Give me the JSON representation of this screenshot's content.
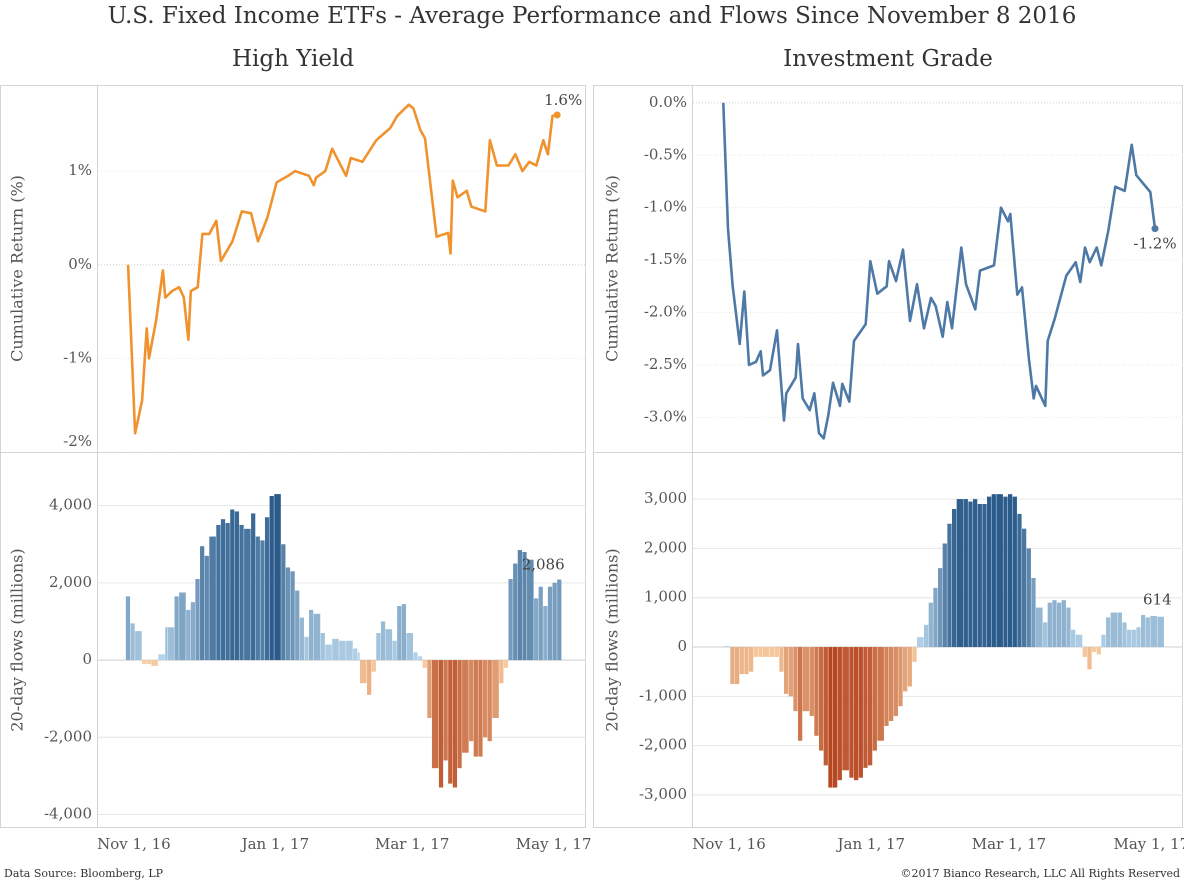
{
  "title": "U.S. Fixed Income ETFs - Average Performance and Flows Since November 8 2016",
  "footer": {
    "source": "Data Source: Bloomberg, LP",
    "copyright": "©2017 Bianco Research, LLC All Rights Reserved"
  },
  "chart_data": [
    {
      "type": "line",
      "title": "High Yield",
      "y_label": "Cumulative Return (%)",
      "color": "#f0922e",
      "grid": true,
      "xlim": [
        "2016-10-26",
        "2017-05-24"
      ],
      "ylim": [
        -2.0,
        1.92
      ],
      "yticks": [
        {
          "value": 1,
          "label": "1%"
        },
        {
          "value": 0,
          "label": "0%"
        },
        {
          "value": -1,
          "label": "-1%"
        },
        {
          "value": -2,
          "label": "-2%"
        }
      ],
      "x": [
        "2016-11-08",
        "2016-11-11",
        "2016-11-14",
        "2016-11-16",
        "2016-11-17",
        "2016-11-20",
        "2016-11-23",
        "2016-11-24",
        "2016-11-27",
        "2016-11-30",
        "2016-12-02",
        "2016-12-04",
        "2016-12-05",
        "2016-12-08",
        "2016-12-10",
        "2016-12-13",
        "2016-12-16",
        "2016-12-18",
        "2016-12-23",
        "2016-12-27",
        "2016-12-31",
        "2017-01-03",
        "2017-01-07",
        "2017-01-11",
        "2017-01-16",
        "2017-01-19",
        "2017-01-25",
        "2017-01-27",
        "2017-01-28",
        "2017-02-01",
        "2017-02-04",
        "2017-02-10",
        "2017-02-12",
        "2017-02-17",
        "2017-02-23",
        "2017-03-01",
        "2017-03-04",
        "2017-03-09",
        "2017-03-11",
        "2017-03-14",
        "2017-03-16",
        "2017-03-21",
        "2017-03-26",
        "2017-03-27",
        "2017-03-28",
        "2017-03-30",
        "2017-04-03",
        "2017-04-05",
        "2017-04-11",
        "2017-04-13",
        "2017-04-16",
        "2017-04-21",
        "2017-04-24",
        "2017-04-27",
        "2017-04-30",
        "2017-05-03",
        "2017-05-06",
        "2017-05-08",
        "2017-05-10",
        "2017-05-12"
      ],
      "values": [
        0,
        -1.8,
        -1.45,
        -0.68,
        -1.0,
        -0.6,
        -0.06,
        -0.35,
        -0.28,
        -0.24,
        -0.35,
        -0.8,
        -0.28,
        -0.24,
        0.33,
        0.33,
        0.47,
        0.04,
        0.25,
        0.57,
        0.55,
        0.25,
        0.5,
        0.88,
        0.95,
        1.0,
        0.95,
        0.85,
        0.93,
        1.0,
        1.24,
        0.95,
        1.14,
        1.1,
        1.33,
        1.46,
        1.59,
        1.71,
        1.67,
        1.44,
        1.35,
        0.3,
        0.34,
        0.12,
        0.9,
        0.72,
        0.79,
        0.62,
        0.57,
        1.33,
        1.06,
        1.06,
        1.18,
        1.0,
        1.1,
        1.06,
        1.33,
        1.18,
        1.59,
        1.6
      ],
      "last_value_label": "1.6%"
    },
    {
      "type": "bar",
      "y_label": "20-day flows (millions)",
      "grid": true,
      "colors": {
        "positive": [
          "#b9d7ec",
          "#2b5b8b"
        ],
        "negative": [
          "#fad0a3",
          "#b03c16"
        ]
      },
      "xlim": [
        "2016-10-26",
        "2017-05-24"
      ],
      "ylim": [
        -4350,
        5390
      ],
      "xticks": [
        {
          "value": "2016-11-01",
          "label": "Nov 1, 16"
        },
        {
          "value": "2017-01-01",
          "label": "Jan 1, 17"
        },
        {
          "value": "2017-03-01",
          "label": "Mar 1, 17"
        },
        {
          "value": "2017-05-01",
          "label": "May 1, 17"
        }
      ],
      "yticks": [
        {
          "value": 4000,
          "label": "4,000"
        },
        {
          "value": 2000,
          "label": "2,000"
        },
        0,
        {
          "value": -2000,
          "label": "-2,000"
        },
        {
          "value": -4000,
          "label": "-4,000"
        }
      ],
      "x": [
        "2016-11-07",
        "2016-11-09",
        "2016-11-11",
        "2016-11-14",
        "2016-11-16",
        "2016-11-18",
        "2016-11-21",
        "2016-11-24",
        "2016-11-25",
        "2016-11-28",
        "2016-11-30",
        "2016-12-03",
        "2016-12-05",
        "2016-12-07",
        "2016-12-09",
        "2016-12-11",
        "2016-12-13",
        "2016-12-16",
        "2016-12-18",
        "2016-12-20",
        "2016-12-22",
        "2016-12-24",
        "2016-12-26",
        "2016-12-28",
        "2016-12-31",
        "2017-01-02",
        "2017-01-04",
        "2017-01-06",
        "2017-01-08",
        "2017-01-10",
        "2017-01-13",
        "2017-01-15",
        "2017-01-17",
        "2017-01-19",
        "2017-01-21",
        "2017-01-23",
        "2017-01-25",
        "2017-01-27",
        "2017-01-30",
        "2017-02-01",
        "2017-02-04",
        "2017-02-07",
        "2017-02-10",
        "2017-02-13",
        "2017-02-15",
        "2017-02-16",
        "2017-02-19",
        "2017-02-21",
        "2017-02-23",
        "2017-02-25",
        "2017-02-27",
        "2017-03-02",
        "2017-03-04",
        "2017-03-06",
        "2017-03-08",
        "2017-03-11",
        "2017-03-13",
        "2017-03-15",
        "2017-03-17",
        "2017-03-19",
        "2017-03-22",
        "2017-03-24",
        "2017-03-26",
        "2017-03-28",
        "2017-03-30",
        "2017-04-01",
        "2017-04-04",
        "2017-04-06",
        "2017-04-08",
        "2017-04-10",
        "2017-04-12",
        "2017-04-14",
        "2017-04-17",
        "2017-04-19",
        "2017-04-21",
        "2017-04-23",
        "2017-04-25",
        "2017-04-27",
        "2017-04-29",
        "2017-05-02",
        "2017-05-04",
        "2017-05-06",
        "2017-05-08",
        "2017-05-10",
        "2017-05-12"
      ],
      "values": [
        1650,
        950,
        750,
        -100,
        -100,
        -150,
        150,
        850,
        850,
        1650,
        1750,
        1300,
        1500,
        2100,
        2950,
        2700,
        3200,
        3500,
        3650,
        3550,
        3900,
        3850,
        3500,
        3400,
        3800,
        3200,
        3100,
        3700,
        4250,
        4300,
        3000,
        2400,
        2300,
        1800,
        1100,
        600,
        1300,
        1200,
        700,
        400,
        550,
        500,
        500,
        300,
        200,
        -600,
        -900,
        -300,
        700,
        1000,
        800,
        500,
        1400,
        1450,
        700,
        200,
        100,
        -200,
        -1500,
        -2800,
        -3300,
        -2600,
        -3200,
        -3300,
        -2800,
        -2400,
        -2100,
        -2500,
        -2500,
        -2000,
        -2100,
        -1500,
        -600,
        -200,
        2100,
        2500,
        2850,
        2800,
        2600,
        1600,
        1900,
        1400,
        1900,
        2000,
        2086
      ],
      "last_value_label": "2,086"
    },
    {
      "type": "line",
      "title": "Investment Grade",
      "y_label": "Cumulative Return (%)",
      "color": "#4e79a7",
      "grid": true,
      "xlim": [
        "2016-10-26",
        "2017-05-24"
      ],
      "ylim": [
        -3.33,
        0.17
      ],
      "yticks": [
        {
          "value": 0,
          "label": "0.0%"
        },
        {
          "value": -0.5,
          "label": "-0.5%"
        },
        {
          "value": -1,
          "label": "-1.0%"
        },
        {
          "value": -1.5,
          "label": "-1.5%"
        },
        {
          "value": -2,
          "label": "-2.0%"
        },
        {
          "value": -2.5,
          "label": "-2.5%"
        },
        {
          "value": -3,
          "label": "-3.0%"
        }
      ],
      "x": [
        "2016-11-08",
        "2016-11-10",
        "2016-11-12",
        "2016-11-15",
        "2016-11-17",
        "2016-11-19",
        "2016-11-22",
        "2016-11-24",
        "2016-11-25",
        "2016-11-28",
        "2016-12-01",
        "2016-12-04",
        "2016-12-05",
        "2016-12-09",
        "2016-12-10",
        "2016-12-12",
        "2016-12-15",
        "2016-12-17",
        "2016-12-19",
        "2016-12-21",
        "2016-12-23",
        "2016-12-25",
        "2016-12-28",
        "2016-12-29",
        "2017-01-01",
        "2017-01-03",
        "2017-01-08",
        "2017-01-10",
        "2017-01-13",
        "2017-01-17",
        "2017-01-18",
        "2017-01-21",
        "2017-01-24",
        "2017-01-27",
        "2017-01-30",
        "2017-02-02",
        "2017-02-05",
        "2017-02-07",
        "2017-02-10",
        "2017-02-12",
        "2017-02-14",
        "2017-02-18",
        "2017-02-20",
        "2017-02-24",
        "2017-02-26",
        "2017-03-04",
        "2017-03-07",
        "2017-03-10",
        "2017-03-11",
        "2017-03-14",
        "2017-03-16",
        "2017-03-19",
        "2017-03-21",
        "2017-03-22",
        "2017-03-26",
        "2017-03-27",
        "2017-03-30",
        "2017-04-03",
        "2017-04-04",
        "2017-04-08",
        "2017-04-10",
        "2017-04-12",
        "2017-04-14",
        "2017-04-17",
        "2017-04-19",
        "2017-04-22",
        "2017-04-25",
        "2017-04-29",
        "2017-05-02",
        "2017-05-04",
        "2017-05-10",
        "2017-05-12"
      ],
      "values": [
        0,
        -1.2,
        -1.75,
        -2.3,
        -1.8,
        -2.5,
        -2.47,
        -2.37,
        -2.6,
        -2.55,
        -2.17,
        -3.03,
        -2.77,
        -2.62,
        -2.3,
        -2.82,
        -2.93,
        -2.77,
        -3.15,
        -3.2,
        -2.98,
        -2.67,
        -2.89,
        -2.68,
        -2.85,
        -2.27,
        -2.11,
        -1.51,
        -1.82,
        -1.75,
        -1.51,
        -1.7,
        -1.4,
        -2.08,
        -1.73,
        -2.15,
        -1.86,
        -1.94,
        -2.23,
        -1.9,
        -2.15,
        -1.38,
        -1.73,
        -1.97,
        -1.6,
        -1.55,
        -1.0,
        -1.13,
        -1.06,
        -1.83,
        -1.76,
        -2.45,
        -2.82,
        -2.7,
        -2.89,
        -2.27,
        -2.06,
        -1.73,
        -1.65,
        -1.52,
        -1.71,
        -1.38,
        -1.52,
        -1.38,
        -1.55,
        -1.22,
        -0.8,
        -0.84,
        -0.4,
        -0.69,
        -0.85,
        -1.2
      ],
      "last_value_label": "-1.2%"
    },
    {
      "type": "bar",
      "y_label": "20-day flows (millions)",
      "grid": true,
      "colors": {
        "positive": [
          "#b9d7ec",
          "#2b5b8b"
        ],
        "negative": [
          "#fad0a3",
          "#b03c16"
        ]
      },
      "xlim": [
        "2016-10-26",
        "2017-05-24"
      ],
      "ylim": [
        -3670,
        3955
      ],
      "xticks": [
        {
          "value": "2016-11-01",
          "label": "Nov 1, 16"
        },
        {
          "value": "2017-01-01",
          "label": "Jan 1, 17"
        },
        {
          "value": "2017-03-01",
          "label": "Mar 1, 17"
        },
        {
          "value": "2017-05-01",
          "label": "May 1, 17"
        }
      ],
      "yticks": [
        {
          "value": 3000,
          "label": "3,000"
        },
        {
          "value": 2000,
          "label": "2,000"
        },
        {
          "value": 1000,
          "label": "1,000"
        },
        0,
        {
          "value": -1000,
          "label": "-1,000"
        },
        {
          "value": -2000,
          "label": "-2,000"
        },
        {
          "value": -3000,
          "label": "-3,000"
        }
      ],
      "x": [
        "2016-11-08",
        "2016-11-11",
        "2016-11-13",
        "2016-11-15",
        "2016-11-17",
        "2016-11-19",
        "2016-11-21",
        "2016-11-23",
        "2016-11-25",
        "2016-11-28",
        "2016-11-30",
        "2016-12-02",
        "2016-12-04",
        "2016-12-06",
        "2016-12-08",
        "2016-12-10",
        "2016-12-12",
        "2016-12-15",
        "2016-12-17",
        "2016-12-19",
        "2016-12-21",
        "2016-12-23",
        "2016-12-25",
        "2016-12-27",
        "2016-12-29",
        "2017-01-01",
        "2017-01-03",
        "2017-01-05",
        "2017-01-07",
        "2017-01-09",
        "2017-01-11",
        "2017-01-13",
        "2017-01-16",
        "2017-01-18",
        "2017-01-20",
        "2017-01-22",
        "2017-01-24",
        "2017-01-26",
        "2017-01-28",
        "2017-01-30",
        "2017-02-02",
        "2017-02-04",
        "2017-02-06",
        "2017-02-08",
        "2017-02-10",
        "2017-02-12",
        "2017-02-14",
        "2017-02-16",
        "2017-02-19",
        "2017-02-21",
        "2017-02-23",
        "2017-02-25",
        "2017-02-27",
        "2017-03-01",
        "2017-03-03",
        "2017-03-05",
        "2017-03-08",
        "2017-03-10",
        "2017-03-12",
        "2017-03-14",
        "2017-03-16",
        "2017-03-18",
        "2017-03-20",
        "2017-03-22",
        "2017-03-25",
        "2017-03-27",
        "2017-03-29",
        "2017-03-31",
        "2017-04-02",
        "2017-04-04",
        "2017-04-06",
        "2017-04-08",
        "2017-04-11",
        "2017-04-13",
        "2017-04-15",
        "2017-04-17",
        "2017-04-19",
        "2017-04-21",
        "2017-04-23",
        "2017-04-26",
        "2017-04-28",
        "2017-04-30",
        "2017-05-02",
        "2017-05-04",
        "2017-05-06",
        "2017-05-08",
        "2017-05-10",
        "2017-05-13"
      ],
      "values": [
        20,
        -750,
        -750,
        -550,
        -550,
        -500,
        -200,
        -200,
        -200,
        -200,
        -200,
        -500,
        -950,
        -1000,
        -1300,
        -1900,
        -1300,
        -1400,
        -1800,
        -2100,
        -2400,
        -2850,
        -2850,
        -2700,
        -2500,
        -2650,
        -2700,
        -2650,
        -2450,
        -2400,
        -2100,
        -1900,
        -1600,
        -1500,
        -1400,
        -1200,
        -900,
        -800,
        -300,
        200,
        450,
        900,
        1200,
        1600,
        2100,
        2500,
        2800,
        3000,
        3000,
        2950,
        3000,
        2900,
        2900,
        3050,
        3100,
        3100,
        3050,
        3100,
        3050,
        2700,
        2400,
        2000,
        1400,
        800,
        500,
        900,
        950,
        900,
        950,
        800,
        350,
        250,
        -200,
        -450,
        -100,
        -150,
        250,
        600,
        700,
        700,
        500,
        350,
        350,
        400,
        650,
        600,
        630,
        614
      ],
      "last_value_label": "614"
    }
  ]
}
